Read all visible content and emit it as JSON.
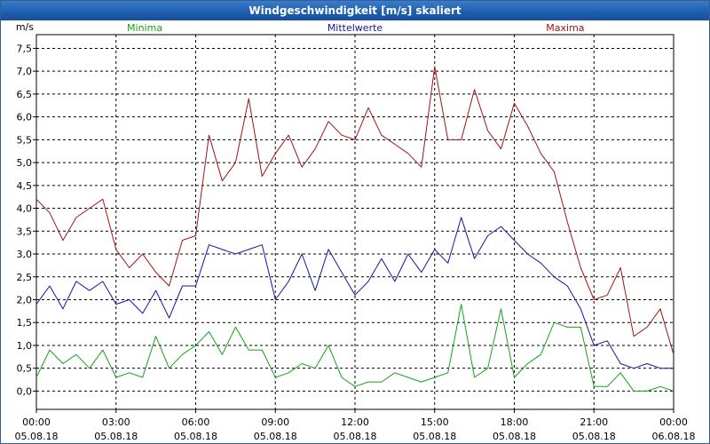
{
  "window": {
    "title": "Windgeschwindigkeit [m/s] skaliert"
  },
  "chart_data": {
    "type": "line",
    "title": "Windgeschwindigkeit [m/s] skaliert",
    "ylabel": "m/s",
    "xlabel": "",
    "ylim": [
      -0.4,
      7.8
    ],
    "yticks": [
      "0,0",
      "0,5",
      "1,0",
      "1,5",
      "2,0",
      "2,5",
      "3,0",
      "3,5",
      "4,0",
      "4,5",
      "5,0",
      "5,5",
      "6,0",
      "6,5",
      "7,0",
      "7,5"
    ],
    "ytick_values": [
      0,
      0.5,
      1,
      1.5,
      2,
      2.5,
      3,
      3.5,
      4,
      4.5,
      5,
      5.5,
      6,
      6.5,
      7,
      7.5
    ],
    "xticks": [
      {
        "time": "00:00",
        "date": "05.08.18"
      },
      {
        "time": "03:00",
        "date": "05.08.18"
      },
      {
        "time": "06:00",
        "date": "05.08.18"
      },
      {
        "time": "09:00",
        "date": "05.08.18"
      },
      {
        "time": "12:00",
        "date": "05.08.18"
      },
      {
        "time": "15:00",
        "date": "05.08.18"
      },
      {
        "time": "18:00",
        "date": "05.08.18"
      },
      {
        "time": "21:00",
        "date": "05.08.18"
      },
      {
        "time": "00:00",
        "date": "06.08.18"
      }
    ],
    "xrange_hours": [
      0,
      24
    ],
    "grid": true,
    "series": [
      {
        "name": "Minima",
        "color": "#16a316",
        "x": [
          0,
          0.5,
          1,
          1.5,
          2,
          2.5,
          3,
          3.5,
          4,
          4.5,
          5,
          5.5,
          6,
          6.5,
          7,
          7.5,
          8,
          8.5,
          9,
          9.5,
          10,
          10.5,
          11,
          11.5,
          12,
          12.5,
          13,
          13.5,
          14,
          14.5,
          15,
          15.5,
          16,
          16.5,
          17,
          17.5,
          18,
          18.5,
          19,
          19.5,
          20,
          20.5,
          21,
          21.5,
          22,
          22.5,
          23,
          23.5,
          24
        ],
        "values": [
          0.3,
          0.9,
          0.6,
          0.8,
          0.5,
          0.9,
          0.3,
          0.4,
          0.3,
          1.2,
          0.5,
          0.8,
          1.0,
          1.3,
          0.8,
          1.4,
          0.9,
          0.9,
          0.3,
          0.4,
          0.6,
          0.5,
          1.0,
          0.3,
          0.1,
          0.2,
          0.2,
          0.4,
          0.3,
          0.2,
          0.3,
          0.4,
          1.9,
          0.3,
          0.5,
          1.8,
          0.3,
          0.6,
          0.8,
          1.5,
          1.4,
          1.4,
          0.1,
          0.1,
          0.4,
          0.0,
          0.0,
          0.1,
          0.0
        ]
      },
      {
        "name": "Mittelwerte",
        "color": "#1414a8",
        "x": [
          0,
          0.5,
          1,
          1.5,
          2,
          2.5,
          3,
          3.5,
          4,
          4.5,
          5,
          5.5,
          6,
          6.5,
          7,
          7.5,
          8,
          8.5,
          9,
          9.5,
          10,
          10.5,
          11,
          11.5,
          12,
          12.5,
          13,
          13.5,
          14,
          14.5,
          15,
          15.5,
          16,
          16.5,
          17,
          17.5,
          18,
          18.5,
          19,
          19.5,
          20,
          20.5,
          21,
          21.5,
          22,
          22.5,
          23,
          23.5,
          24
        ],
        "values": [
          1.9,
          2.3,
          1.8,
          2.4,
          2.2,
          2.4,
          1.9,
          2.0,
          1.7,
          2.2,
          1.6,
          2.3,
          2.3,
          3.2,
          3.1,
          3.0,
          3.1,
          3.2,
          2.0,
          2.4,
          3.0,
          2.2,
          3.1,
          2.6,
          2.1,
          2.4,
          2.9,
          2.4,
          3.0,
          2.6,
          3.1,
          2.8,
          3.8,
          2.9,
          3.4,
          3.6,
          3.3,
          3.0,
          2.8,
          2.5,
          2.3,
          1.8,
          1.0,
          1.1,
          0.6,
          0.5,
          0.6,
          0.5,
          0.5
        ]
      },
      {
        "name": "Maxima",
        "color": "#a01414",
        "x": [
          0,
          0.5,
          1,
          1.5,
          2,
          2.5,
          3,
          3.5,
          4,
          4.5,
          5,
          5.5,
          6,
          6.5,
          7,
          7.5,
          8,
          8.5,
          9,
          9.5,
          10,
          10.5,
          11,
          11.5,
          12,
          12.5,
          13,
          13.5,
          14,
          14.5,
          15,
          15.5,
          16,
          16.5,
          17,
          17.5,
          18,
          18.5,
          19,
          19.5,
          20,
          20.5,
          21,
          21.5,
          22,
          22.5,
          23,
          23.5,
          24
        ],
        "values": [
          4.2,
          3.9,
          3.3,
          3.8,
          4.0,
          4.2,
          3.1,
          2.7,
          3.0,
          2.6,
          2.3,
          3.3,
          3.4,
          5.6,
          4.6,
          5.0,
          6.4,
          4.7,
          5.2,
          5.6,
          4.9,
          5.3,
          5.9,
          5.6,
          5.5,
          6.2,
          5.6,
          5.4,
          5.2,
          4.9,
          7.1,
          5.5,
          5.5,
          6.6,
          5.7,
          5.3,
          6.3,
          5.8,
          5.2,
          4.8,
          3.7,
          2.7,
          2.0,
          2.1,
          2.7,
          1.2,
          1.4,
          1.8,
          0.8
        ]
      }
    ]
  }
}
